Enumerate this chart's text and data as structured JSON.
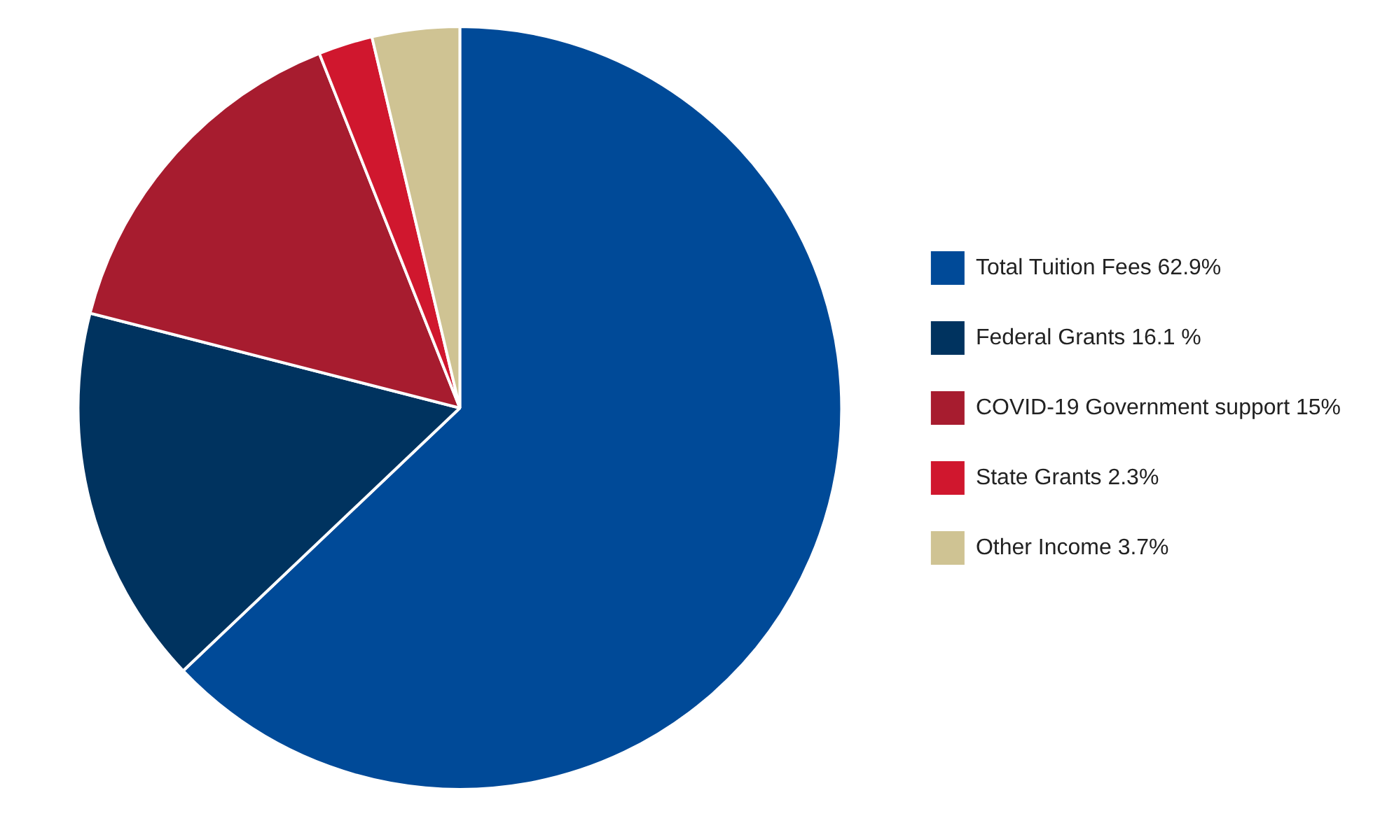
{
  "chart_data": {
    "type": "pie",
    "categories": [
      "Total Tuition Fees 62.9%",
      "Federal Grants 16.1 %",
      "COVID-19 Government support 15%",
      "State Grants 2.3%",
      "Other Income 3.7%"
    ],
    "values": [
      62.9,
      16.1,
      15,
      2.3,
      3.7
    ],
    "colors": [
      "#004a98",
      "#00335f",
      "#a71c2f",
      "#d0172e",
      "#cfc393"
    ],
    "legend": "right"
  }
}
